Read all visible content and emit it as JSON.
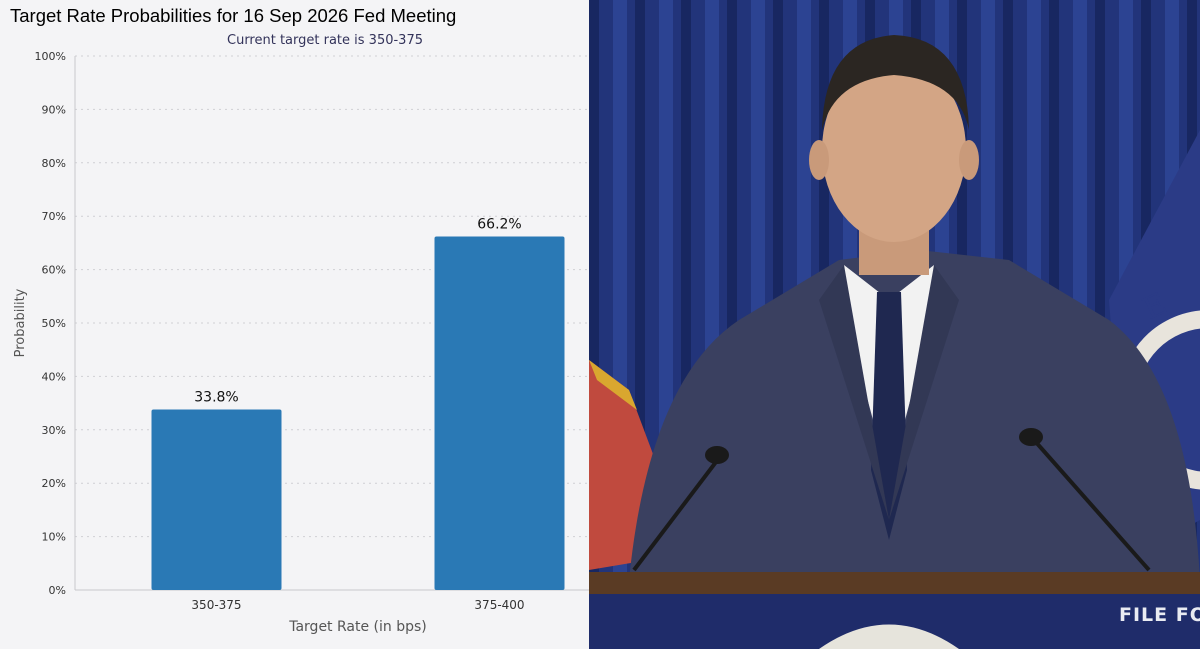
{
  "chart_data": {
    "type": "bar",
    "title": "Target Rate Probabilities for 16 Sep 2026 Fed Meeting",
    "subtitle": "Current target rate is 350-375",
    "xlabel": "Target Rate (in bps)",
    "ylabel": "Probability",
    "categories": [
      "350-375",
      "375-400"
    ],
    "values": [
      33.8,
      66.2
    ],
    "value_labels": [
      "33.8%",
      "66.2%"
    ],
    "ylim": [
      0,
      100
    ],
    "yticks": [
      "0%",
      "10%",
      "20%",
      "30%",
      "40%",
      "50%",
      "60%",
      "70%",
      "80%",
      "90%",
      "100%"
    ],
    "grid": "horizontal-dotted",
    "bar_color": "#2a79b5"
  },
  "photo": {
    "description_icon": "press-conference-photo",
    "banner_text": "FILE FO"
  }
}
